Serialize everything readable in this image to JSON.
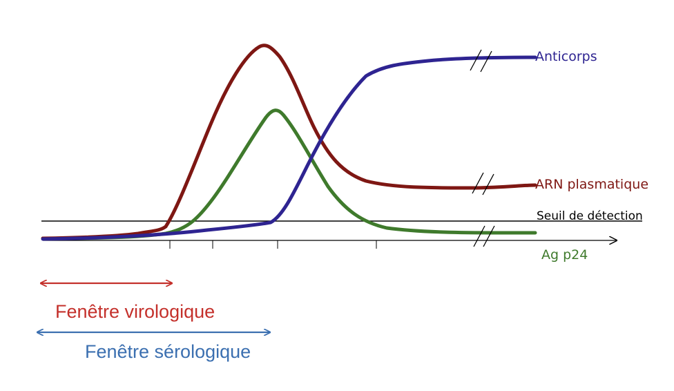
{
  "curves": {
    "anticorps": {
      "label": "Anticorps",
      "color": "#2e2491"
    },
    "arn": {
      "label": "ARN plasmatique",
      "color": "#7e1713"
    },
    "p24": {
      "label": "Ag p24",
      "color": "#3f7a2c"
    }
  },
  "threshold": {
    "label": "Seuil  de  détection",
    "color": "#000000"
  },
  "windows": {
    "virologique": {
      "label": "Fenêtre virologique",
      "color": "#c4302b"
    },
    "serologique": {
      "label": "Fenêtre sérologique",
      "color": "#3b6fb0"
    }
  }
}
